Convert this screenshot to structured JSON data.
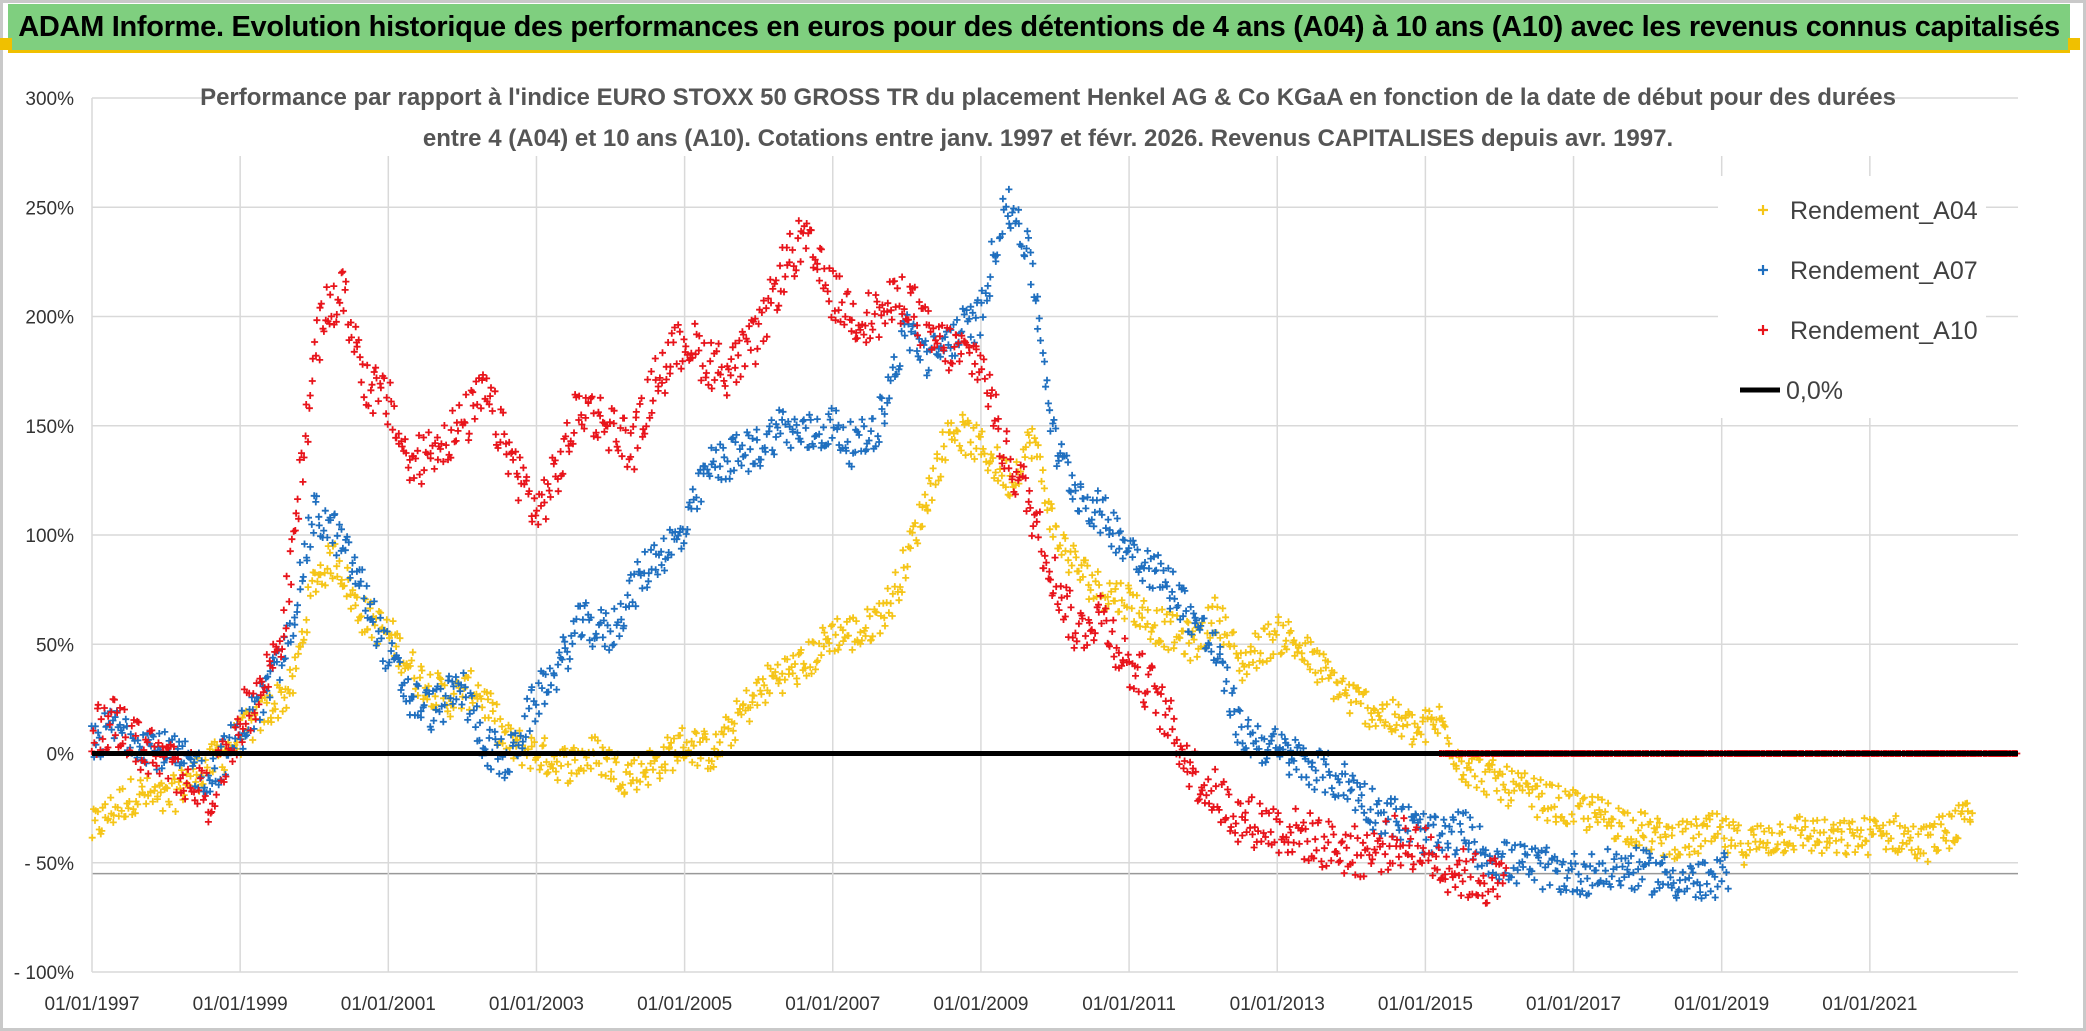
{
  "header": {
    "title": "ADAM Informe. Evolution historique des performances en euros pour des détentions de 4 ans (A04) à 10 ans (A10) avec les revenus connus capitalisés"
  },
  "colors": {
    "banner": "#7fcf7f",
    "A04": "#f5c518",
    "A07": "#1f6fbf",
    "A10": "#e8141b",
    "zero": "#000000",
    "grid": "#d9d9d9"
  },
  "chart_data": {
    "type": "scatter",
    "title_line1": "Performance par rapport à l'indice EURO STOXX 50 GROSS TR  du placement Henkel AG & Co KGaA en fonction de la date de début pour des durées",
    "title_line2": "entre 4 (A04) et 10 ans (A10). Cotations entre janv. 1997 et févr. 2026. Revenus CAPITALISES depuis avr. 1997.",
    "x_start": 1997.0,
    "x_end": 2023.0,
    "ylim": [
      -100,
      300
    ],
    "y_ticks": [
      {
        "v": 300,
        "label": "300%"
      },
      {
        "v": 250,
        "label": "250%"
      },
      {
        "v": 200,
        "label": "200%"
      },
      {
        "v": 150,
        "label": "150%"
      },
      {
        "v": 100,
        "label": "100%"
      },
      {
        "v": 50,
        "label": "50%"
      },
      {
        "v": 0,
        "label": "0%"
      },
      {
        "v": -50,
        "label": "- 50%"
      },
      {
        "v": -100,
        "label": "- 100%"
      }
    ],
    "x_ticks": [
      {
        "v": 1997,
        "label": "01/01/1997"
      },
      {
        "v": 1999,
        "label": "01/01/1999"
      },
      {
        "v": 2001,
        "label": "01/01/2001"
      },
      {
        "v": 2003,
        "label": "01/01/2003"
      },
      {
        "v": 2005,
        "label": "01/01/2005"
      },
      {
        "v": 2007,
        "label": "01/01/2007"
      },
      {
        "v": 2009,
        "label": "01/01/2009"
      },
      {
        "v": 2011,
        "label": "01/01/2011"
      },
      {
        "v": 2013,
        "label": "01/01/2013"
      },
      {
        "v": 2015,
        "label": "01/01/2015"
      },
      {
        "v": 2017,
        "label": "01/01/2017"
      },
      {
        "v": 2019,
        "label": "01/01/2019"
      },
      {
        "v": 2021,
        "label": "01/01/2021"
      }
    ],
    "zero_line": {
      "name": "0,0%",
      "value": 0
    },
    "series": [
      {
        "name": "Rendement_A04",
        "color_key": "A04",
        "x": [
          1997.0,
          1997.3,
          1997.6,
          1998.0,
          1998.3,
          1998.6,
          1999.0,
          1999.3,
          1999.7,
          2000.0,
          2000.3,
          2000.6,
          2001.0,
          2001.4,
          2001.8,
          2002.2,
          2002.6,
          2003.0,
          2003.4,
          2003.8,
          2004.2,
          2004.6,
          2005.0,
          2005.4,
          2005.8,
          2006.2,
          2006.6,
          2007.0,
          2007.4,
          2007.8,
          2008.2,
          2008.6,
          2009.0,
          2009.4,
          2009.7,
          2010.0,
          2010.3,
          2010.6,
          2011.0,
          2011.3,
          2011.6,
          2011.9,
          2012.2,
          2012.5,
          2012.8,
          2013.1,
          2013.4,
          2013.7,
          2014.0,
          2014.3,
          2014.6,
          2014.9,
          2015.2,
          2015.5,
          2015.8,
          2016.1,
          2016.5,
          2016.9,
          2017.3,
          2017.7,
          2018.1,
          2018.5,
          2018.9,
          2019.3,
          2019.7,
          2020.1,
          2020.5,
          2020.9,
          2021.3,
          2021.7,
          2022.1,
          2022.4
        ],
        "y": [
          -35,
          -25,
          -18,
          -22,
          -12,
          -5,
          8,
          18,
          30,
          80,
          90,
          65,
          55,
          35,
          25,
          30,
          5,
          0,
          -5,
          0,
          -10,
          -5,
          5,
          0,
          20,
          35,
          40,
          55,
          55,
          70,
          110,
          150,
          140,
          125,
          145,
          100,
          85,
          75,
          70,
          60,
          55,
          50,
          65,
          40,
          50,
          55,
          45,
          35,
          25,
          20,
          15,
          10,
          15,
          -5,
          -10,
          -15,
          -20,
          -25,
          -28,
          -32,
          -38,
          -40,
          -36,
          -42,
          -38,
          -36,
          -40,
          -38,
          -36,
          -42,
          -34,
          -30
        ],
        "spread": 9
      },
      {
        "name": "Rendement_A07",
        "color_key": "A07",
        "x": [
          1997.0,
          1997.3,
          1997.6,
          1998.0,
          1998.3,
          1998.6,
          1999.0,
          1999.3,
          1999.6,
          2000.0,
          2000.3,
          2000.6,
          2001.0,
          2001.3,
          2001.6,
          2002.0,
          2002.3,
          2002.6,
          2003.0,
          2003.3,
          2003.6,
          2004.0,
          2004.3,
          2004.6,
          2005.0,
          2005.3,
          2005.6,
          2006.0,
          2006.3,
          2006.6,
          2007.0,
          2007.3,
          2007.6,
          2008.0,
          2008.3,
          2008.6,
          2009.0,
          2009.3,
          2009.5,
          2009.7,
          2010.0,
          2010.3,
          2010.6,
          2011.0,
          2011.3,
          2011.6,
          2011.9,
          2012.2,
          2012.5,
          2012.8,
          2013.1,
          2013.4,
          2013.7,
          2014.0,
          2014.3,
          2014.6,
          2014.9,
          2015.2,
          2015.5,
          2015.8,
          2016.1,
          2016.5,
          2016.9,
          2017.3,
          2017.7,
          2018.1,
          2018.5,
          2018.9,
          2019.1
        ],
        "y": [
          5,
          12,
          8,
          0,
          -5,
          -10,
          10,
          25,
          45,
          110,
          100,
          80,
          45,
          25,
          20,
          30,
          5,
          -5,
          25,
          40,
          60,
          55,
          75,
          90,
          100,
          130,
          135,
          140,
          150,
          145,
          150,
          140,
          150,
          195,
          180,
          190,
          200,
          250,
          245,
          220,
          140,
          120,
          110,
          95,
          85,
          75,
          60,
          45,
          10,
          5,
          0,
          -5,
          -10,
          -15,
          -25,
          -30,
          -35,
          -40,
          -35,
          -45,
          -50,
          -52,
          -55,
          -55,
          -52,
          -55,
          -58,
          -60,
          -52
        ],
        "spread": 10
      },
      {
        "name": "Rendement_A10",
        "color_key": "A10",
        "x": [
          1997.0,
          1997.3,
          1997.6,
          1998.0,
          1998.3,
          1998.6,
          1999.0,
          1999.3,
          1999.6,
          1999.9,
          2000.1,
          2000.4,
          2000.7,
          2001.0,
          2001.3,
          2001.6,
          2002.0,
          2002.3,
          2002.6,
          2003.0,
          2003.3,
          2003.6,
          2004.0,
          2004.3,
          2004.6,
          2005.0,
          2005.3,
          2005.6,
          2006.0,
          2006.3,
          2006.6,
          2007.0,
          2007.3,
          2007.6,
          2008.0,
          2008.3,
          2008.6,
          2009.0,
          2009.3,
          2009.6,
          2010.0,
          2010.3,
          2010.6,
          2011.0,
          2011.3,
          2011.6,
          2011.9,
          2012.2,
          2012.5,
          2012.8,
          2013.1,
          2013.4,
          2013.7,
          2014.0,
          2014.3,
          2014.6,
          2014.9,
          2015.2,
          2015.5,
          2015.8,
          2016.1
        ],
        "y": [
          10,
          15,
          5,
          -5,
          -10,
          -20,
          15,
          30,
          60,
          150,
          200,
          210,
          170,
          160,
          130,
          140,
          150,
          165,
          140,
          110,
          130,
          160,
          150,
          140,
          170,
          190,
          180,
          175,
          190,
          220,
          235,
          210,
          200,
          200,
          210,
          190,
          185,
          180,
          140,
          120,
          80,
          55,
          65,
          40,
          30,
          10,
          -10,
          -20,
          -30,
          -32,
          -35,
          -38,
          -42,
          -45,
          -45,
          -40,
          -42,
          -50,
          -55,
          -58,
          -60
        ],
        "spread": 12
      },
      {
        "name": "Rendement_A10_zero",
        "color_key": "A10",
        "x": [
          2015.2,
          2016.0,
          2017.0,
          2018.0,
          2019.0,
          2020.0,
          2021.0,
          2022.0,
          2023.0
        ],
        "y": [
          0,
          0,
          0,
          0,
          0,
          0,
          0,
          0,
          0
        ],
        "spread": 0
      }
    ],
    "legend": [
      {
        "label": "Rendement_A04",
        "color_key": "A04",
        "marker": "+"
      },
      {
        "label": "Rendement_A07",
        "color_key": "A07",
        "marker": "+"
      },
      {
        "label": "Rendement_A10",
        "color_key": "A10",
        "marker": "+"
      },
      {
        "label": "0,0%",
        "color_key": "zero",
        "marker": "line"
      }
    ]
  }
}
